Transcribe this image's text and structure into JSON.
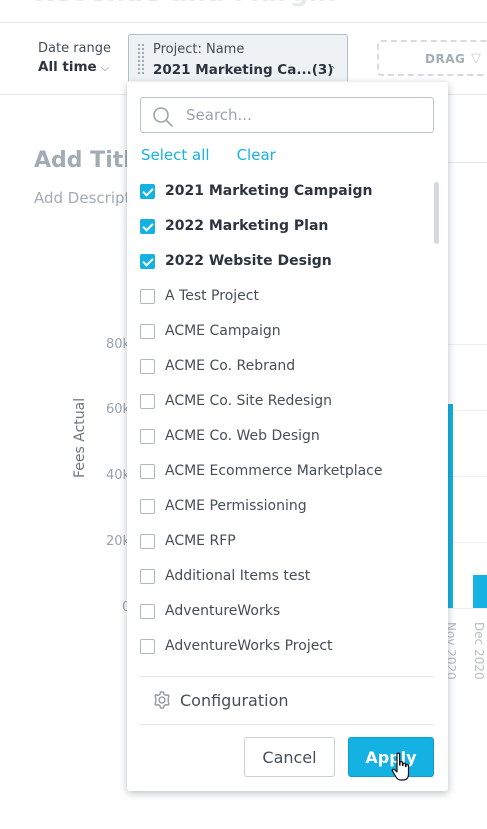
{
  "background": {
    "insight_title": "Revenue and Margin",
    "add_title": "Add Title",
    "add_description": "Add Description",
    "chart": {
      "y_axis_label": "Fees Actual",
      "y_ticks": [
        "80k",
        "60k",
        "40k",
        "20k",
        "0"
      ],
      "x_ticks": [
        "Nov 2020",
        "Dec 2020"
      ]
    }
  },
  "filters": {
    "date_range": {
      "label": "Date range",
      "value": "All time"
    },
    "project": {
      "label": "Project: Name",
      "value": "2021 Marketing Ca...(3)"
    },
    "drag_zone_text": "DRAG"
  },
  "dropdown": {
    "search_placeholder": "Search...",
    "select_all": "Select all",
    "clear": "Clear",
    "items": [
      {
        "label": "2021 Marketing Campaign",
        "checked": true
      },
      {
        "label": "2022 Marketing Plan",
        "checked": true
      },
      {
        "label": "2022 Website Design",
        "checked": true
      },
      {
        "label": "A Test Project",
        "checked": false
      },
      {
        "label": "ACME Campaign",
        "checked": false
      },
      {
        "label": "ACME Co. Rebrand",
        "checked": false
      },
      {
        "label": "ACME Co. Site Redesign",
        "checked": false
      },
      {
        "label": "ACME Co. Web Design",
        "checked": false
      },
      {
        "label": "ACME Ecommerce Marketplace",
        "checked": false
      },
      {
        "label": "ACME Permissioning",
        "checked": false
      },
      {
        "label": "ACME RFP",
        "checked": false
      },
      {
        "label": "Additional Items test",
        "checked": false
      },
      {
        "label": "AdventureWorks",
        "checked": false
      },
      {
        "label": "AdventureWorks Project",
        "checked": false
      }
    ],
    "configuration": "Configuration",
    "cancel": "Cancel",
    "apply": "Apply"
  },
  "colors": {
    "accent": "#14b2e2",
    "text": "#464e56"
  }
}
